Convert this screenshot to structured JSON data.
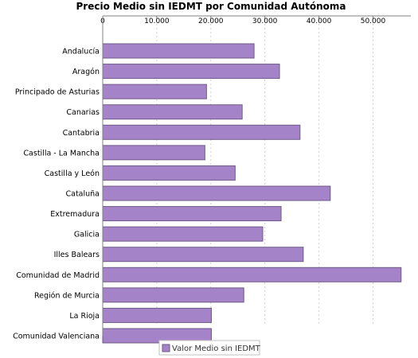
{
  "chart_data": {
    "type": "bar",
    "orientation": "horizontal",
    "title": "Precio Medio sin IEDMT por Comunidad Autónoma",
    "categories": [
      "Andalucía",
      "Aragón",
      "Principado de Asturias",
      "Canarias",
      "Cantabria",
      "Castilla - La Mancha",
      "Castilla y León",
      "Cataluña",
      "Extremadura",
      "Galicia",
      "Illes Balears",
      "Comunidad de Madrid",
      "Región de Murcia",
      "La Rioja",
      "Comunidad Valenciana"
    ],
    "series": [
      {
        "name": "Valor Medio sin IEDMT",
        "values": [
          28000,
          32700,
          19200,
          25800,
          36500,
          18900,
          24500,
          42100,
          33000,
          29600,
          37100,
          55200,
          26100,
          20100,
          20100
        ]
      }
    ],
    "xaxis_position": "top",
    "xticks": [
      "0",
      "10.000",
      "20.000",
      "30.000",
      "40.000",
      "50.000"
    ],
    "xtick_values": [
      0,
      10000,
      20000,
      30000,
      40000,
      50000
    ],
    "xlim": [
      0,
      57000
    ],
    "grid": "vertical-dashed",
    "legend_position": "bottom",
    "colors": {
      "bar_fill": "#a583c9",
      "bar_stroke": "#6f5a86",
      "grid": "#d0d0d0",
      "axis": "#808080"
    }
  }
}
